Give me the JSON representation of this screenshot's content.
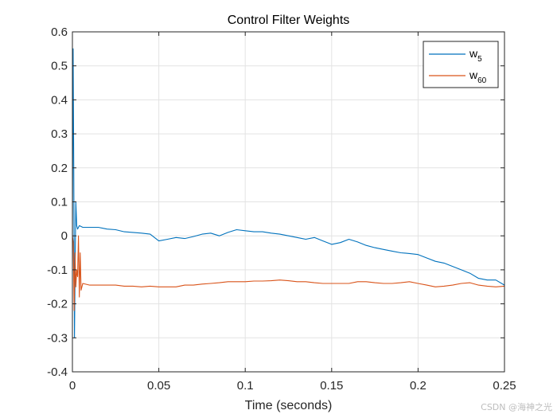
{
  "chart_data": {
    "type": "line",
    "title": "Control Filter Weights",
    "xlabel": "Time (seconds)",
    "ylabel": "",
    "xlim": [
      0,
      0.25
    ],
    "ylim": [
      -0.4,
      0.6
    ],
    "xticks": [
      0,
      0.05,
      0.1,
      0.15,
      0.2,
      0.25
    ],
    "xtick_labels": [
      "0",
      "0.05",
      "0.1",
      "0.15",
      "0.2",
      "0.25"
    ],
    "yticks": [
      -0.4,
      -0.3,
      -0.2,
      -0.1,
      0,
      0.1,
      0.2,
      0.3,
      0.4,
      0.5,
      0.6
    ],
    "ytick_labels": [
      "-0.4",
      "-0.3",
      "-0.2",
      "-0.1",
      "0",
      "0.1",
      "0.2",
      "0.3",
      "0.4",
      "0.5",
      "0.6"
    ],
    "grid": true,
    "legend_position": "top-right",
    "series": [
      {
        "name": "w",
        "subscript": "5",
        "color": "#0072BD",
        "x": [
          0,
          0.0004,
          0.0008,
          0.0012,
          0.0016,
          0.002,
          0.0025,
          0.003,
          0.004,
          0.006,
          0.01,
          0.015,
          0.02,
          0.025,
          0.03,
          0.035,
          0.04,
          0.045,
          0.05,
          0.055,
          0.06,
          0.065,
          0.07,
          0.075,
          0.08,
          0.085,
          0.09,
          0.095,
          0.1,
          0.105,
          0.11,
          0.115,
          0.12,
          0.125,
          0.13,
          0.135,
          0.14,
          0.145,
          0.15,
          0.155,
          0.16,
          0.165,
          0.17,
          0.175,
          0.18,
          0.185,
          0.19,
          0.195,
          0.2,
          0.205,
          0.21,
          0.215,
          0.22,
          0.225,
          0.23,
          0.235,
          0.24,
          0.245,
          0.25
        ],
        "y": [
          0,
          0.55,
          0.2,
          -0.3,
          -0.07,
          0.1,
          0.03,
          0.02,
          0.03,
          0.025,
          0.025,
          0.025,
          0.02,
          0.018,
          0.012,
          0.01,
          0.008,
          0.005,
          -0.015,
          -0.01,
          -0.005,
          -0.008,
          -0.002,
          0.005,
          0.008,
          0.0,
          0.01,
          0.018,
          0.015,
          0.012,
          0.012,
          0.008,
          0.005,
          0.0,
          -0.005,
          -0.01,
          -0.005,
          -0.015,
          -0.025,
          -0.02,
          -0.01,
          -0.018,
          -0.028,
          -0.035,
          -0.04,
          -0.045,
          -0.05,
          -0.052,
          -0.055,
          -0.065,
          -0.075,
          -0.08,
          -0.09,
          -0.1,
          -0.11,
          -0.125,
          -0.13,
          -0.13,
          -0.145
        ]
      },
      {
        "name": "w",
        "subscript": "60",
        "color": "#D95319",
        "x": [
          0,
          0.0005,
          0.001,
          0.0015,
          0.002,
          0.0025,
          0.003,
          0.0035,
          0.004,
          0.0045,
          0.005,
          0.006,
          0.01,
          0.015,
          0.02,
          0.025,
          0.03,
          0.035,
          0.04,
          0.045,
          0.05,
          0.055,
          0.06,
          0.065,
          0.07,
          0.075,
          0.08,
          0.085,
          0.09,
          0.095,
          0.1,
          0.105,
          0.11,
          0.115,
          0.12,
          0.125,
          0.13,
          0.135,
          0.14,
          0.145,
          0.15,
          0.155,
          0.16,
          0.165,
          0.17,
          0.175,
          0.18,
          0.185,
          0.19,
          0.195,
          0.2,
          0.205,
          0.21,
          0.215,
          0.22,
          0.225,
          0.23,
          0.235,
          0.24,
          0.245,
          0.25
        ],
        "y": [
          0,
          -0.02,
          -0.22,
          -0.05,
          -0.15,
          -0.1,
          -0.12,
          0.0,
          -0.18,
          -0.05,
          -0.16,
          -0.14,
          -0.145,
          -0.145,
          -0.145,
          -0.145,
          -0.148,
          -0.148,
          -0.15,
          -0.148,
          -0.15,
          -0.15,
          -0.15,
          -0.145,
          -0.145,
          -0.142,
          -0.14,
          -0.138,
          -0.135,
          -0.135,
          -0.135,
          -0.133,
          -0.133,
          -0.132,
          -0.13,
          -0.132,
          -0.135,
          -0.135,
          -0.138,
          -0.14,
          -0.14,
          -0.14,
          -0.14,
          -0.135,
          -0.135,
          -0.138,
          -0.14,
          -0.14,
          -0.138,
          -0.135,
          -0.14,
          -0.145,
          -0.15,
          -0.148,
          -0.145,
          -0.14,
          -0.138,
          -0.145,
          -0.148,
          -0.15,
          -0.148
        ]
      }
    ]
  },
  "watermark": "CSDN @海神之光"
}
